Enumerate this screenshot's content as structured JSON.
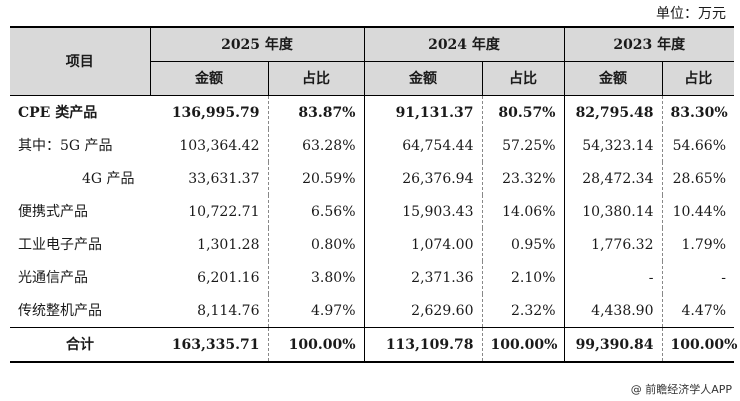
{
  "unit_label": "单位：万元",
  "header": {
    "item_label": "项目",
    "years": [
      "2025 年度",
      "2024 年度",
      "2023 年度"
    ],
    "amount_label": "金额",
    "ratio_label": "占比"
  },
  "rows": [
    {
      "label": "CPE 类产品",
      "v": [
        "136,995.79",
        "83.87%",
        "91,131.37",
        "80.57%",
        "82,795.48",
        "83.30%"
      ]
    },
    {
      "label": "其中：5G 产品",
      "v": [
        "103,364.42",
        "63.28%",
        "64,754.44",
        "57.25%",
        "54,323.14",
        "54.66%"
      ]
    },
    {
      "label": "4G 产品",
      "v": [
        "33,631.37",
        "20.59%",
        "26,376.94",
        "23.32%",
        "28,472.34",
        "28.65%"
      ]
    },
    {
      "label": "便携式产品",
      "v": [
        "10,722.71",
        "6.56%",
        "15,903.43",
        "14.06%",
        "10,380.14",
        "10.44%"
      ]
    },
    {
      "label": "工业电子产品",
      "v": [
        "1,301.28",
        "0.80%",
        "1,074.00",
        "0.95%",
        "1,776.32",
        "1.79%"
      ]
    },
    {
      "label": "光通信产品",
      "v": [
        "6,201.16",
        "3.80%",
        "2,371.36",
        "2.10%",
        "-",
        "-"
      ]
    },
    {
      "label": "传统整机产品",
      "v": [
        "8,114.76",
        "4.97%",
        "2,629.60",
        "2.32%",
        "4,438.90",
        "4.47%"
      ]
    },
    {
      "label": "合计",
      "v": [
        "163,335.71",
        "100.00%",
        "113,109.78",
        "100.00%",
        "99,390.84",
        "100.00%"
      ]
    }
  ],
  "source": "@ 前瞻经济学人APP"
}
